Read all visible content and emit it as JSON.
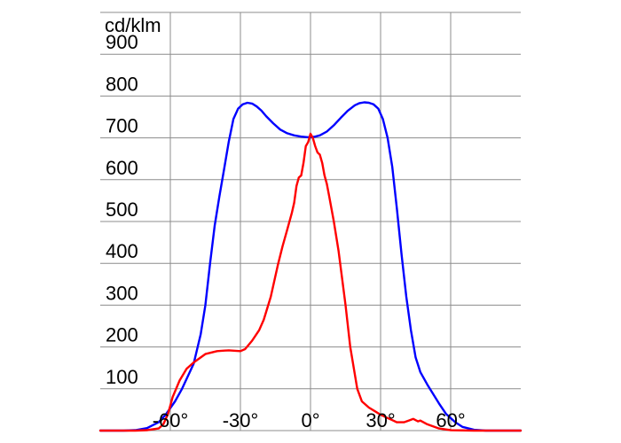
{
  "chart_data": {
    "type": "line",
    "title": "",
    "ylabel": "cd/klm",
    "xlabel": "",
    "xlim": [
      -90,
      90
    ],
    "ylim": [
      0,
      1000
    ],
    "x_ticks": [
      -60,
      -30,
      0,
      30,
      60
    ],
    "x_tick_labels": [
      "-60°",
      "-30°",
      "0°",
      "30°",
      "60°"
    ],
    "y_ticks": [
      100,
      200,
      300,
      400,
      500,
      600,
      700,
      800,
      900
    ],
    "y_tick_labels": [
      "100",
      "200",
      "300",
      "400",
      "500",
      "600",
      "700",
      "800",
      "900"
    ],
    "grid": true,
    "legend": "none",
    "series": [
      {
        "color": "#0000ff",
        "x": [
          -90,
          -80,
          -75,
          -70,
          -65,
          -62,
          -58,
          -55,
          -50,
          -47,
          -45,
          -43,
          -41,
          -39,
          -37,
          -35,
          -33,
          -31,
          -29,
          -27,
          -25,
          -23,
          -21,
          -19,
          -16,
          -13,
          -10,
          -7,
          -4,
          -2,
          0,
          2,
          4,
          7,
          10,
          13,
          16,
          19,
          21,
          23,
          25,
          27,
          29,
          31,
          33,
          35,
          37,
          39,
          41,
          43,
          45,
          47,
          50,
          55,
          58,
          62,
          65,
          70,
          75,
          80,
          90
        ],
        "y": [
          0,
          0,
          1,
          6,
          20,
          38,
          70,
          100,
          160,
          230,
          300,
          400,
          490,
          560,
          625,
          690,
          745,
          770,
          780,
          784,
          782,
          775,
          765,
          752,
          735,
          720,
          711,
          706,
          703,
          702,
          701,
          703,
          706,
          715,
          730,
          748,
          765,
          778,
          783,
          785,
          784,
          780,
          770,
          745,
          700,
          630,
          530,
          420,
          320,
          240,
          175,
          140,
          110,
          65,
          40,
          20,
          9,
          2,
          0,
          0,
          0
        ]
      },
      {
        "color": "#ff0000",
        "x": [
          -90,
          -75,
          -70,
          -65,
          -63,
          -61,
          -59,
          -56,
          -53,
          -50,
          -45,
          -40,
          -35,
          -30,
          -28,
          -25,
          -22,
          -20,
          -17,
          -14,
          -12,
          -10,
          -8,
          -7,
          -6,
          -5,
          -4,
          -3,
          -2,
          -1,
          0,
          1,
          2,
          3,
          4,
          5,
          6,
          7,
          8,
          10,
          12,
          15,
          17,
          20,
          22,
          25,
          28,
          30,
          33,
          35,
          37,
          40,
          42,
          44,
          46,
          47,
          50,
          55,
          60,
          70,
          80,
          90
        ],
        "y": [
          0,
          0,
          1,
          5,
          15,
          40,
          80,
          120,
          148,
          163,
          183,
          190,
          192,
          190,
          195,
          215,
          240,
          265,
          320,
          395,
          440,
          480,
          520,
          545,
          585,
          605,
          610,
          640,
          680,
          690,
          710,
          700,
          680,
          665,
          660,
          640,
          610,
          590,
          560,
          500,
          430,
          300,
          200,
          100,
          70,
          55,
          45,
          38,
          30,
          25,
          20,
          20,
          24,
          28,
          22,
          24,
          15,
          5,
          1,
          0,
          0,
          0
        ]
      }
    ]
  }
}
